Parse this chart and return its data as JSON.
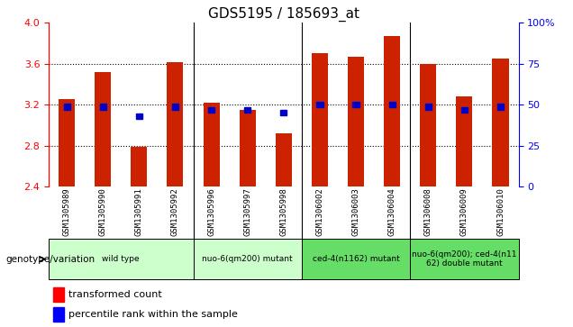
{
  "title": "GDS5195 / 185693_at",
  "samples": [
    "GSM1305989",
    "GSM1305990",
    "GSM1305991",
    "GSM1305992",
    "GSM1305996",
    "GSM1305997",
    "GSM1305998",
    "GSM1306002",
    "GSM1306003",
    "GSM1306004",
    "GSM1306008",
    "GSM1306009",
    "GSM1306010"
  ],
  "bar_values": [
    3.25,
    3.52,
    2.79,
    3.62,
    3.22,
    3.15,
    2.92,
    3.7,
    3.67,
    3.87,
    3.6,
    3.28,
    3.65
  ],
  "percentile_values": [
    3.18,
    3.18,
    3.09,
    3.18,
    3.15,
    3.15,
    3.12,
    3.2,
    3.2,
    3.2,
    3.18,
    3.15,
    3.18
  ],
  "ylim_left": [
    2.4,
    4.0
  ],
  "ylim_right": [
    0,
    100
  ],
  "bar_color": "#cc2200",
  "percentile_color": "#0000cc",
  "bar_bottom": 2.4,
  "group_data": [
    {
      "label": "wild type",
      "xmin": -0.5,
      "xmax": 3.5,
      "color": "#ccffcc"
    },
    {
      "label": "nuo-6(qm200) mutant",
      "xmin": 3.5,
      "xmax": 6.5,
      "color": "#ccffcc"
    },
    {
      "label": "ced-4(n1162) mutant",
      "xmin": 6.5,
      "xmax": 9.5,
      "color": "#66dd66"
    },
    {
      "label": "nuo-6(qm200); ced-4(n11\n62) double mutant",
      "xmin": 9.5,
      "xmax": 12.5,
      "color": "#66dd66"
    }
  ],
  "group_boundaries": [
    3.5,
    6.5,
    9.5
  ],
  "background_color": "#ffffff",
  "tick_area_color": "#c8c8c8",
  "title_fontsize": 11,
  "right_ytick_labels": [
    "0",
    "25",
    "50",
    "75",
    "100%"
  ]
}
